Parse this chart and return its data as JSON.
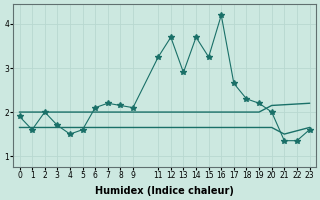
{
  "title": "",
  "xlabel": "Humidex (Indice chaleur)",
  "background_color": "#cce8e0",
  "grid_color": "#b8d8d0",
  "line_color": "#1a7068",
  "xlim": [
    -0.5,
    23.5
  ],
  "ylim": [
    0.75,
    4.45
  ],
  "x_data": [
    0,
    1,
    2,
    3,
    4,
    5,
    6,
    7,
    8,
    9,
    11,
    12,
    13,
    14,
    15,
    16,
    17,
    18,
    19,
    20,
    21,
    22,
    23
  ],
  "y_data": [
    1.9,
    1.6,
    2.0,
    1.7,
    1.5,
    1.6,
    2.1,
    2.2,
    2.15,
    2.1,
    3.25,
    3.7,
    2.9,
    3.7,
    3.25,
    4.2,
    2.65,
    2.3,
    2.2,
    2.0,
    1.35,
    1.35,
    1.6
  ],
  "ref_line1_x": [
    0,
    9,
    11,
    19,
    20,
    23
  ],
  "ref_line1_y": [
    2.0,
    2.0,
    2.0,
    2.0,
    2.15,
    2.2
  ],
  "ref_line2_x": [
    0,
    9,
    11,
    16,
    20,
    21,
    23
  ],
  "ref_line2_y": [
    1.65,
    1.65,
    1.65,
    1.65,
    1.65,
    1.5,
    1.65
  ],
  "xticks": [
    0,
    1,
    2,
    3,
    4,
    5,
    6,
    7,
    8,
    9,
    11,
    12,
    13,
    14,
    15,
    16,
    17,
    18,
    19,
    20,
    21,
    22,
    23
  ],
  "yticks": [
    1,
    2,
    3,
    4
  ],
  "marker": "*",
  "markersize": 4
}
